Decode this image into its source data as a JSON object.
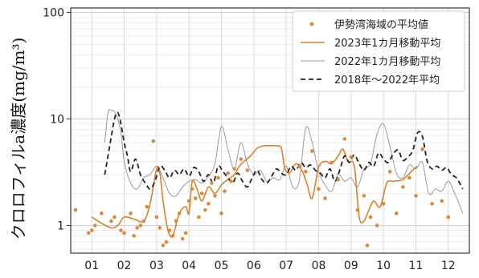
{
  "chart_data": {
    "type": "line",
    "title": "",
    "xlabel": "",
    "ylabel": "クロロフィルa濃度(mg/m³)",
    "yscale": "log",
    "ylim": [
      0.55,
      110
    ],
    "xlim": [
      0.35,
      12.65
    ],
    "yticks": [
      1,
      10,
      100
    ],
    "ytick_labels": [
      "1",
      "10",
      "100"
    ],
    "xticks": [
      1,
      2,
      3,
      4,
      5,
      6,
      7,
      8,
      9,
      10,
      11,
      12
    ],
    "xtick_labels": [
      "01",
      "02",
      "03",
      "04",
      "05",
      "06",
      "07",
      "08",
      "09",
      "10",
      "11",
      "12"
    ],
    "grid": true,
    "legend_position": "top-right",
    "series": [
      {
        "name": "伊勢湾海域の平均値",
        "style": "scatter",
        "color": "#d98a3c",
        "x": [
          0.5,
          0.9,
          1.0,
          1.1,
          1.3,
          1.6,
          1.7,
          1.9,
          2.0,
          2.2,
          2.3,
          2.4,
          2.5,
          2.6,
          2.7,
          2.9,
          3.0,
          3.1,
          3.2,
          3.3,
          3.4,
          3.5,
          3.6,
          3.7,
          3.8,
          3.9,
          4.0,
          4.1,
          4.2,
          4.3,
          4.4,
          4.5,
          4.6,
          4.7,
          4.8,
          4.9,
          5.0,
          5.1,
          5.2,
          5.3,
          5.4,
          5.6,
          5.8,
          7.4,
          7.6,
          7.8,
          8.0,
          8.2,
          8.4,
          8.6,
          8.8,
          9.0,
          9.2,
          9.4,
          9.5,
          9.6,
          9.8,
          10.0,
          10.2,
          10.4,
          10.6,
          10.8,
          11.0,
          11.2,
          11.5,
          11.8,
          12.0
        ],
        "y": [
          1.4,
          0.85,
          0.9,
          1.0,
          1.3,
          1.1,
          1.2,
          0.9,
          0.85,
          1.3,
          0.8,
          0.95,
          1.0,
          1.1,
          1.5,
          6.2,
          1.2,
          0.95,
          0.65,
          0.7,
          0.9,
          0.8,
          1.1,
          1.3,
          0.75,
          0.85,
          1.7,
          2.2,
          1.8,
          1.2,
          2.0,
          1.4,
          1.6,
          2.5,
          1.9,
          2.8,
          1.3,
          2.1,
          3.1,
          2.6,
          3.4,
          4.2,
          3.3,
          3.6,
          3.2,
          5.0,
          2.2,
          1.8,
          3.9,
          2.7,
          6.5,
          4.4,
          1.4,
          1.9,
          0.65,
          1.2,
          1.0,
          1.6,
          3.2,
          1.3,
          2.3,
          2.8,
          1.9,
          5.2,
          1.6,
          1.7,
          1.2
        ]
      },
      {
        "name": "2023年1カ月移動平均",
        "style": "line",
        "color": "#d9822b",
        "x": [
          1.0,
          1.3,
          1.6,
          1.8,
          2.0,
          2.3,
          2.6,
          2.8,
          3.0,
          3.1,
          3.2,
          3.35,
          3.5,
          3.7,
          3.9,
          4.0,
          4.1,
          4.25,
          4.4,
          4.6,
          4.8,
          5.0,
          5.2,
          5.4,
          5.55,
          5.7,
          5.9,
          6.1,
          6.3,
          6.5,
          6.7,
          6.85,
          6.95,
          7.1,
          7.3,
          7.5,
          7.65,
          7.8,
          8.0,
          8.2,
          8.4,
          8.6,
          8.75,
          8.9,
          9.1,
          9.25,
          9.4,
          9.55,
          9.7,
          9.9,
          10.1,
          10.3,
          10.6,
          10.9,
          11.05
        ],
        "y": [
          1.2,
          1.05,
          0.95,
          1.0,
          1.2,
          1.15,
          1.1,
          1.6,
          3.4,
          3.1,
          1.7,
          0.9,
          0.8,
          1.3,
          1.5,
          1.3,
          2.6,
          2.2,
          1.7,
          2.3,
          2.0,
          2.4,
          2.7,
          3.0,
          3.6,
          4.0,
          4.5,
          5.3,
          5.6,
          5.6,
          5.6,
          5.3,
          3.5,
          3.1,
          3.8,
          3.2,
          2.4,
          1.8,
          3.5,
          4.0,
          3.8,
          4.5,
          5.2,
          4.0,
          3.6,
          1.2,
          1.1,
          1.4,
          1.7,
          1.5,
          2.5,
          2.6,
          2.7,
          3.3,
          3.6
        ]
      },
      {
        "name": "2022年1カ月移動平均",
        "style": "line",
        "color": "#9a9a9a",
        "x": [
          1.4,
          1.5,
          1.6,
          1.7,
          1.8,
          1.9,
          2.0,
          2.2,
          2.4,
          2.6,
          2.8,
          3.0,
          3.2,
          3.4,
          3.6,
          3.8,
          4.0,
          4.2,
          4.4,
          4.6,
          4.8,
          5.0,
          5.2,
          5.4,
          5.6,
          5.8,
          6.0,
          6.2,
          6.4,
          6.6,
          6.8,
          7.0,
          7.2,
          7.4,
          7.6,
          7.8,
          8.0,
          8.2,
          8.4,
          8.6,
          8.8,
          9.0,
          9.2,
          9.4,
          9.6,
          9.8,
          10.0,
          10.2,
          10.4,
          10.6,
          10.8,
          11.0,
          11.2,
          11.4,
          11.6,
          11.8,
          12.0,
          12.2,
          12.45
        ],
        "y": [
          6.0,
          11.5,
          12.0,
          11.8,
          10.0,
          7.5,
          4.0,
          2.5,
          2.2,
          2.8,
          3.0,
          3.6,
          2.8,
          2.0,
          1.9,
          2.3,
          2.6,
          2.7,
          2.5,
          2.9,
          3.8,
          8.5,
          5.2,
          3.4,
          6.0,
          3.8,
          3.0,
          3.3,
          2.6,
          2.8,
          2.7,
          3.6,
          2.3,
          2.6,
          8.2,
          6.0,
          3.2,
          2.4,
          2.1,
          3.0,
          2.6,
          2.8,
          2.3,
          3.4,
          3.8,
          7.2,
          9.0,
          5.5,
          3.1,
          2.8,
          3.7,
          3.4,
          3.9,
          2.0,
          2.2,
          2.1,
          2.6,
          2.0,
          1.3
        ]
      },
      {
        "name": "2018年～2022年平均",
        "style": "dashed",
        "color": "#222222",
        "x": [
          1.4,
          1.55,
          1.7,
          1.8,
          1.9,
          2.0,
          2.1,
          2.2,
          2.35,
          2.5,
          2.65,
          2.8,
          2.95,
          3.1,
          3.25,
          3.4,
          3.55,
          3.7,
          3.85,
          4.0,
          4.15,
          4.3,
          4.45,
          4.6,
          4.75,
          4.9,
          5.05,
          5.2,
          5.35,
          5.5,
          5.65,
          5.8,
          5.95,
          6.1,
          6.25,
          6.4,
          6.55,
          6.7,
          6.85,
          7.0,
          7.15,
          7.3,
          7.45,
          7.6,
          7.75,
          7.9,
          8.05,
          8.2,
          8.35,
          8.5,
          8.65,
          8.8,
          8.95,
          9.1,
          9.25,
          9.4,
          9.55,
          9.7,
          9.85,
          10.0,
          10.15,
          10.3,
          10.45,
          10.6,
          10.75,
          10.9,
          11.05,
          11.2,
          11.35,
          11.5,
          11.65,
          11.8,
          11.95,
          12.1,
          12.25,
          12.45
        ],
        "y": [
          3.0,
          5.5,
          10.0,
          11.5,
          9.0,
          6.0,
          4.5,
          3.2,
          4.2,
          3.0,
          2.5,
          2.2,
          2.6,
          3.6,
          3.3,
          2.8,
          3.3,
          3.0,
          3.4,
          2.9,
          3.5,
          3.2,
          2.6,
          3.0,
          2.5,
          3.6,
          3.2,
          2.8,
          2.5,
          3.1,
          2.6,
          2.3,
          2.8,
          3.3,
          2.7,
          2.5,
          2.9,
          3.4,
          3.1,
          3.0,
          3.6,
          3.3,
          3.9,
          3.5,
          3.7,
          3.3,
          3.1,
          2.8,
          3.4,
          2.6,
          3.3,
          4.5,
          3.9,
          4.6,
          3.8,
          3.3,
          3.9,
          3.6,
          4.8,
          4.2,
          3.9,
          4.7,
          5.1,
          4.1,
          4.4,
          5.0,
          7.4,
          6.9,
          4.0,
          3.4,
          3.6,
          3.3,
          3.5,
          3.0,
          2.8,
          2.2
        ]
      }
    ]
  }
}
